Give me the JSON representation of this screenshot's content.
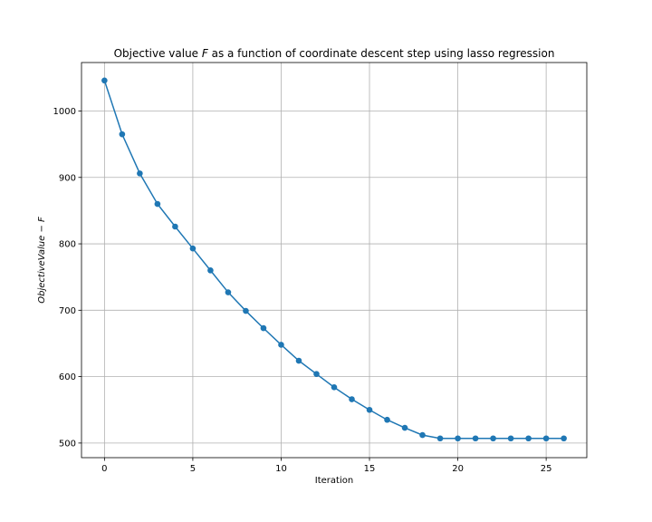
{
  "chart_data": {
    "type": "line",
    "title_prefix": "Objective value ",
    "title_var": "F",
    "title_suffix": " as a function of coordinate descent step using lasso regression",
    "xlabel": "Iteration",
    "ylabel": "ObjectiveValue − F",
    "xlim": [
      -1.3,
      27.3
    ],
    "ylim": [
      478,
      1073
    ],
    "xticks": [
      0,
      5,
      10,
      15,
      20,
      25
    ],
    "yticks": [
      500,
      600,
      700,
      800,
      900,
      1000
    ],
    "grid": true,
    "marker": "circle",
    "series": [
      {
        "color": "#1f77b4",
        "x": [
          0,
          1,
          2,
          3,
          4,
          5,
          6,
          7,
          8,
          9,
          10,
          11,
          12,
          13,
          14,
          15,
          16,
          17,
          18,
          19,
          20,
          21,
          22,
          23,
          24,
          25,
          26
        ],
        "y": [
          1046,
          965,
          906,
          860,
          826,
          793,
          760,
          727,
          699,
          673,
          648,
          624,
          604,
          584,
          566,
          550,
          535,
          523,
          512,
          507,
          507,
          507,
          507,
          507,
          507,
          507,
          507
        ]
      }
    ]
  }
}
